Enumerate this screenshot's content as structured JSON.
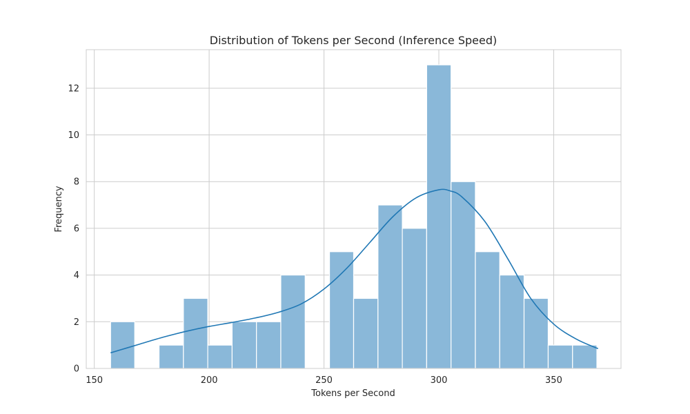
{
  "chart_data": {
    "type": "bar",
    "title": "Distribution of Tokens per Second (Inference Speed)",
    "xlabel": "Tokens per Second",
    "ylabel": "Frequency",
    "xlim": [
      146.5,
      379.3
    ],
    "ylim": [
      0,
      13.65
    ],
    "xticks": [
      150,
      200,
      250,
      300,
      350
    ],
    "yticks": [
      0,
      2,
      4,
      6,
      8,
      10,
      12
    ],
    "grid": true,
    "legend": "none",
    "bar_color": "#8ab8d9",
    "kde_color": "#1f77b4",
    "bins": [
      {
        "x0": 157.1,
        "x1": 167.6,
        "count": 2
      },
      {
        "x0": 167.6,
        "x1": 178.2,
        "count": 0
      },
      {
        "x0": 178.2,
        "x1": 188.8,
        "count": 1
      },
      {
        "x0": 188.8,
        "x1": 199.4,
        "count": 3
      },
      {
        "x0": 199.4,
        "x1": 210.0,
        "count": 1
      },
      {
        "x0": 210.0,
        "x1": 220.6,
        "count": 2
      },
      {
        "x0": 220.6,
        "x1": 231.2,
        "count": 2
      },
      {
        "x0": 231.2,
        "x1": 241.8,
        "count": 4
      },
      {
        "x0": 241.8,
        "x1": 252.4,
        "count": 0
      },
      {
        "x0": 252.4,
        "x1": 262.9,
        "count": 5
      },
      {
        "x0": 262.9,
        "x1": 273.5,
        "count": 3
      },
      {
        "x0": 273.5,
        "x1": 284.1,
        "count": 7
      },
      {
        "x0": 284.1,
        "x1": 294.7,
        "count": 6
      },
      {
        "x0": 294.7,
        "x1": 305.3,
        "count": 13
      },
      {
        "x0": 305.3,
        "x1": 315.9,
        "count": 8
      },
      {
        "x0": 315.9,
        "x1": 326.5,
        "count": 5
      },
      {
        "x0": 326.5,
        "x1": 337.1,
        "count": 4
      },
      {
        "x0": 337.1,
        "x1": 347.6,
        "count": 3
      },
      {
        "x0": 347.6,
        "x1": 358.2,
        "count": 1
      },
      {
        "x0": 358.2,
        "x1": 368.8,
        "count": 1
      }
    ],
    "kde": {
      "x": [
        157.1,
        170,
        180,
        190,
        200,
        210,
        220,
        230,
        240,
        250,
        260,
        270,
        280,
        290,
        300,
        305,
        310,
        320,
        330,
        340,
        350,
        360,
        369.3
      ],
      "y": [
        0.67,
        1.05,
        1.34,
        1.59,
        1.8,
        1.97,
        2.16,
        2.4,
        2.76,
        3.4,
        4.3,
        5.4,
        6.5,
        7.3,
        7.65,
        7.6,
        7.35,
        6.3,
        4.7,
        3.0,
        1.9,
        1.25,
        0.85
      ]
    }
  }
}
